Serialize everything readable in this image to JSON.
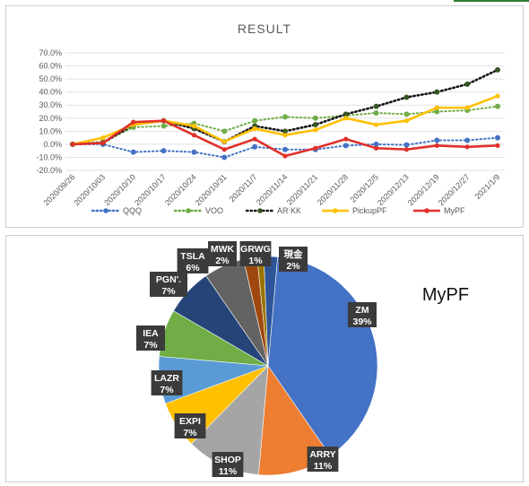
{
  "line_chart": {
    "title": "RESULT"
  },
  "pie_chart": {
    "title": "MyPF"
  },
  "chart_data": [
    {
      "type": "line",
      "title": "RESULT",
      "categories": [
        "2020/09/26",
        "2020/10/03",
        "2020/10/10",
        "2020/10/17",
        "2020/10/24",
        "2020/10/31",
        "2020/11/7",
        "2020/11/14",
        "2020/11/21",
        "2020/11/28",
        "2020/12/5",
        "2020/12/13",
        "2020/12/19",
        "2020/12/27",
        "2021/1/9"
      ],
      "y_ticks": [
        "70.0%",
        "60.0%",
        "50.0%",
        "40.0%",
        "30.0%",
        "20.0%",
        "10.0%",
        "0.0%",
        "-10.0%",
        "-20.0%"
      ],
      "ylim": [
        -20,
        70
      ],
      "y_unit": "%",
      "grid": true,
      "legend_position": "bottom",
      "series": [
        {
          "name": "QQQ",
          "color": "#4472c4",
          "style": "dotted",
          "values": [
            0,
            0,
            -6,
            -5,
            -6,
            -10,
            -2,
            -4,
            -4,
            -1,
            0,
            -0.5,
            3,
            3,
            5
          ]
        },
        {
          "name": "VOO",
          "color": "#70ad47",
          "style": "dotted",
          "values": [
            0,
            2,
            13,
            14,
            16,
            10,
            18,
            21,
            20,
            22,
            24,
            23,
            25,
            26,
            29
          ]
        },
        {
          "name": "AR KK",
          "color": "#375623",
          "style": "dotted-marker",
          "values": [
            0,
            1,
            15,
            18,
            12,
            2,
            14,
            10,
            15,
            23,
            29,
            36,
            40,
            46,
            57
          ]
        },
        {
          "name": "PickupPF",
          "color": "#ffc000",
          "style": "solid",
          "values": [
            0,
            5,
            15,
            18,
            14,
            2,
            12,
            7,
            11,
            20,
            15,
            18,
            28,
            28,
            37
          ]
        },
        {
          "name": "MyPF",
          "color": "#e0302a",
          "style": "solid",
          "values": [
            0,
            1,
            17,
            18,
            7,
            -4,
            4,
            -9,
            -3,
            4,
            -3,
            -4,
            -1,
            -2,
            -1
          ]
        }
      ]
    },
    {
      "type": "pie",
      "title": "MyPF",
      "slices": [
        {
          "label": "ZM",
          "pct_text": "39%",
          "value": 39,
          "color": "#4472c4"
        },
        {
          "label": "ARRY",
          "pct_text": "11%",
          "value": 11,
          "color": "#ed7d31"
        },
        {
          "label": "SHOP",
          "pct_text": "11%",
          "value": 11,
          "color": "#a5a5a5"
        },
        {
          "label": "EXPI",
          "pct_text": "7%",
          "value": 7,
          "color": "#ffc000"
        },
        {
          "label": "LAZR",
          "pct_text": "7%",
          "value": 7,
          "color": "#5b9bd5"
        },
        {
          "label": "IEA",
          "pct_text": "7%",
          "value": 7,
          "color": "#70ad47"
        },
        {
          "label": "PGNX",
          "display_label": "PGN'.",
          "pct_text": "7%",
          "value": 7,
          "color": "#264478"
        },
        {
          "label": "TSLA",
          "pct_text": "6%",
          "value": 6,
          "color": "#636363"
        },
        {
          "label": "MWK",
          "pct_text": "2%",
          "value": 2,
          "color": "#9e480e"
        },
        {
          "label": "GRWG",
          "pct_text": "1%",
          "value": 1,
          "color": "#997300"
        },
        {
          "label": "現金",
          "pct_text": "2%",
          "value": 2,
          "color": "#2e5597"
        }
      ]
    }
  ]
}
